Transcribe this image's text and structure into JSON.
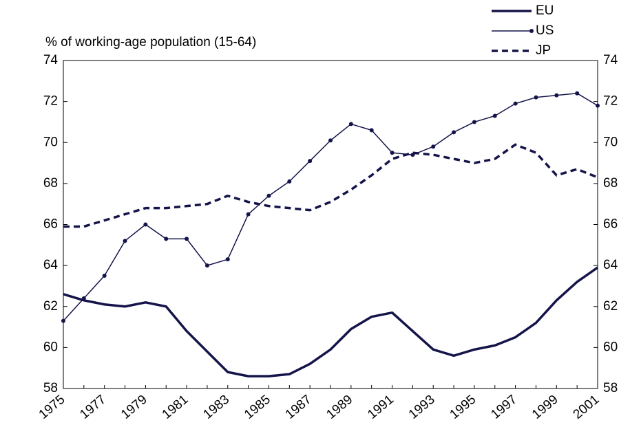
{
  "chart_data": {
    "type": "line",
    "y_label": "% of working-age population (15-64)",
    "categories": [
      "1975",
      null,
      "1977",
      null,
      "1979",
      null,
      "1981",
      null,
      "1983",
      null,
      "1985",
      null,
      "1987",
      null,
      "1989",
      null,
      "1991",
      null,
      "1993",
      null,
      "1995",
      null,
      "1997",
      null,
      "1999",
      null,
      "2001"
    ],
    "series": [
      {
        "name": "EU",
        "color": "#14144a",
        "style": "solid",
        "marker": false,
        "values": [
          62.6,
          62.3,
          62.1,
          62.0,
          62.2,
          62.0,
          60.8,
          59.8,
          58.8,
          58.6,
          58.6,
          58.7,
          59.2,
          59.9,
          60.9,
          61.5,
          61.7,
          60.8,
          59.9,
          59.6,
          59.9,
          60.1,
          60.5,
          61.2,
          62.3,
          63.2,
          63.9
        ]
      },
      {
        "name": "US",
        "color": "#14144a",
        "style": "thin",
        "marker": true,
        "values": [
          61.3,
          62.4,
          63.5,
          65.2,
          66.0,
          65.3,
          65.3,
          64.0,
          64.3,
          66.5,
          67.4,
          68.1,
          69.1,
          70.1,
          70.9,
          70.6,
          69.5,
          69.4,
          69.8,
          70.5,
          71.0,
          71.3,
          71.9,
          72.2,
          72.3,
          72.4,
          71.8
        ]
      },
      {
        "name": "JP",
        "color": "#14144a",
        "style": "dashed",
        "marker": false,
        "values": [
          65.9,
          65.9,
          66.2,
          66.5,
          66.8,
          66.8,
          66.9,
          67.0,
          67.4,
          67.1,
          66.9,
          66.8,
          66.7,
          67.1,
          67.7,
          68.4,
          69.2,
          69.5,
          69.4,
          69.2,
          69.0,
          69.2,
          69.9,
          69.5,
          68.4,
          68.7,
          68.3
        ]
      }
    ],
    "ylim": [
      58,
      74
    ],
    "yticks": [
      58,
      60,
      62,
      64,
      66,
      68,
      70,
      72,
      74
    ],
    "y2lim": [
      58,
      74
    ],
    "y2ticks": [
      58,
      60,
      62,
      64,
      66,
      68,
      70,
      72,
      74
    ],
    "grid": false,
    "legend": "top-right"
  }
}
